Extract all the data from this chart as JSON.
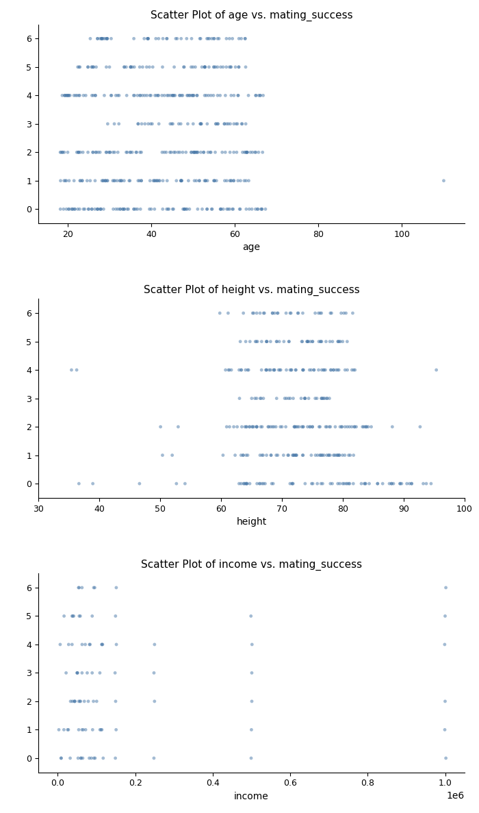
{
  "title1": "Scatter Plot of age vs. mating_success",
  "title2": "Scatter Plot of height vs. mating_success",
  "title3": "Scatter Plot of income vs. mating_success",
  "xlabel1": "age",
  "xlabel2": "height",
  "xlabel3": "income",
  "dot_color": "#4878a8",
  "dot_alpha": 0.5,
  "dot_size": 12,
  "figsize": [
    7.0,
    11.87
  ],
  "subplot_hspace": 0.38
}
